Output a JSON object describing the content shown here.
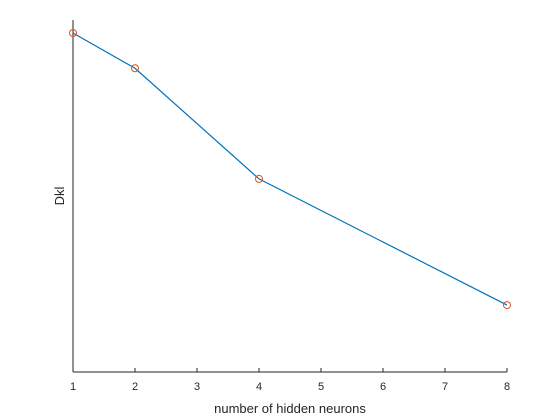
{
  "chart_data": {
    "type": "line",
    "title": "",
    "xlabel": "number of hidden neurons",
    "ylabel": "Dkl",
    "x": [
      1,
      2,
      4,
      8
    ],
    "series": [
      {
        "values": [
          1.0,
          0.884,
          0.52,
          0.105
        ]
      }
    ],
    "xlim": [
      1,
      8
    ],
    "ylim": [
      0,
      1
    ],
    "xticks": [
      1,
      2,
      3,
      4,
      5,
      6,
      7,
      8
    ],
    "yticks": [],
    "grid": false,
    "line_color": "#0072BD",
    "marker_color": "#D95319",
    "marker": "circle"
  }
}
